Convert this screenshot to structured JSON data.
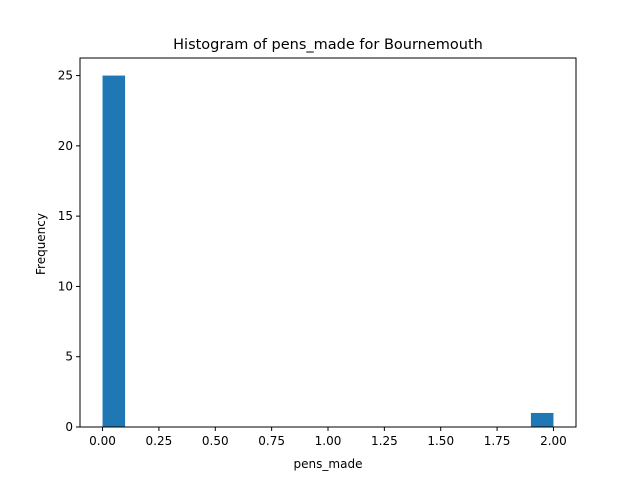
{
  "chart_data": {
    "type": "bar",
    "title": "Histogram of pens_made for Bournemouth",
    "xlabel": "pens_made",
    "ylabel": "Frequency",
    "xlim": [
      -0.1,
      2.1
    ],
    "ylim": [
      0,
      26.25
    ],
    "xticks": [
      0.0,
      0.25,
      0.5,
      0.75,
      1.0,
      1.25,
      1.5,
      1.75,
      2.0
    ],
    "xtick_labels": [
      "0.00",
      "0.25",
      "0.50",
      "0.75",
      "1.00",
      "1.25",
      "1.50",
      "1.75",
      "2.00"
    ],
    "yticks": [
      0,
      5,
      10,
      15,
      20,
      25
    ],
    "ytick_labels": [
      "0",
      "5",
      "10",
      "15",
      "20",
      "25"
    ],
    "bins": [
      {
        "x_start": 0.0,
        "x_end": 0.1,
        "count": 25
      },
      {
        "x_start": 1.9,
        "x_end": 2.0,
        "count": 1
      }
    ],
    "bar_color": "#1f77b4",
    "grid": false
  }
}
